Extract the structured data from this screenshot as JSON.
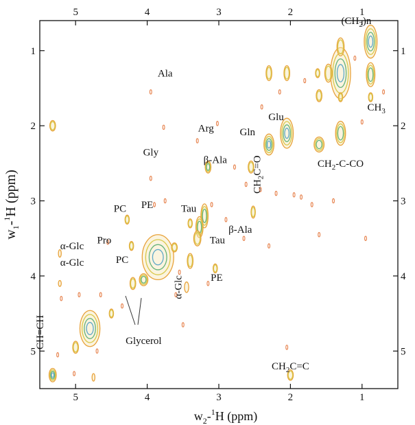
{
  "chart_data": {
    "type": "scatter",
    "subtype": "2D NMR contour spectrum (diagonal + cross peaks)",
    "xlabel": {
      "pre": "w",
      "sub": "2",
      "post": "-",
      "sup": "1",
      "tail": "H  (ppm)"
    },
    "ylabel": {
      "pre": "w",
      "sub": "1",
      "post": "-",
      "sup": "1",
      "tail": "H  (ppm)"
    },
    "xlim": [
      5.5,
      0.5
    ],
    "ylim": [
      0.6,
      5.5
    ],
    "xticks": [
      5,
      4,
      3,
      2,
      1
    ],
    "yticks": [
      1,
      2,
      3,
      4,
      5
    ],
    "colors": {
      "outer": "#e8a23a",
      "mid": "#d9c84a",
      "inner": "#66b37a",
      "core": "#5fa8c8",
      "cross": "#e6804a"
    },
    "peaks": [
      {
        "x": 0.88,
        "y": 0.88,
        "w": 0.09,
        "h": 0.22,
        "level": 4
      },
      {
        "x": 0.88,
        "y": 1.32,
        "w": 0.06,
        "h": 0.16,
        "level": 3
      },
      {
        "x": 1.3,
        "y": 1.3,
        "w": 0.14,
        "h": 0.34,
        "level": 4
      },
      {
        "x": 1.3,
        "y": 0.95,
        "w": 0.05,
        "h": 0.12,
        "level": 2
      },
      {
        "x": 1.47,
        "y": 1.3,
        "w": 0.05,
        "h": 0.12,
        "level": 2
      },
      {
        "x": 1.6,
        "y": 1.6,
        "w": 0.04,
        "h": 0.08,
        "level": 2
      },
      {
        "x": 1.6,
        "y": 2.25,
        "w": 0.07,
        "h": 0.1,
        "level": 3
      },
      {
        "x": 1.3,
        "y": 2.1,
        "w": 0.07,
        "h": 0.16,
        "level": 3
      },
      {
        "x": 2.05,
        "y": 2.1,
        "w": 0.09,
        "h": 0.2,
        "level": 4
      },
      {
        "x": 2.3,
        "y": 2.25,
        "w": 0.07,
        "h": 0.14,
        "level": 4
      },
      {
        "x": 2.05,
        "y": 1.3,
        "w": 0.04,
        "h": 0.1,
        "level": 2
      },
      {
        "x": 2.3,
        "y": 1.3,
        "w": 0.04,
        "h": 0.1,
        "level": 2
      },
      {
        "x": 2.55,
        "y": 2.55,
        "w": 0.04,
        "h": 0.08,
        "level": 2
      },
      {
        "x": 2.52,
        "y": 3.15,
        "w": 0.03,
        "h": 0.08,
        "level": 2
      },
      {
        "x": 3.2,
        "y": 3.2,
        "w": 0.05,
        "h": 0.16,
        "level": 3
      },
      {
        "x": 3.27,
        "y": 3.35,
        "w": 0.05,
        "h": 0.14,
        "level": 3
      },
      {
        "x": 3.15,
        "y": 2.55,
        "w": 0.04,
        "h": 0.08,
        "level": 3
      },
      {
        "x": 3.3,
        "y": 3.5,
        "w": 0.05,
        "h": 0.1,
        "level": 2
      },
      {
        "x": 3.4,
        "y": 3.8,
        "w": 0.04,
        "h": 0.1,
        "level": 2
      },
      {
        "x": 3.45,
        "y": 4.15,
        "w": 0.03,
        "h": 0.07,
        "level": 1
      },
      {
        "x": 3.85,
        "y": 3.75,
        "w": 0.22,
        "h": 0.3,
        "level": 4
      },
      {
        "x": 4.05,
        "y": 4.05,
        "w": 0.06,
        "h": 0.08,
        "level": 3
      },
      {
        "x": 4.2,
        "y": 4.1,
        "w": 0.04,
        "h": 0.08,
        "level": 2
      },
      {
        "x": 4.22,
        "y": 3.6,
        "w": 0.03,
        "h": 0.06,
        "level": 2
      },
      {
        "x": 4.28,
        "y": 3.25,
        "w": 0.03,
        "h": 0.06,
        "level": 2
      },
      {
        "x": 3.62,
        "y": 3.62,
        "w": 0.04,
        "h": 0.06,
        "level": 2
      },
      {
        "x": 4.8,
        "y": 4.7,
        "w": 0.14,
        "h": 0.24,
        "level": 4
      },
      {
        "x": 5.0,
        "y": 4.95,
        "w": 0.04,
        "h": 0.08,
        "level": 2
      },
      {
        "x": 4.5,
        "y": 4.5,
        "w": 0.03,
        "h": 0.06,
        "level": 2
      },
      {
        "x": 5.32,
        "y": 5.32,
        "w": 0.05,
        "h": 0.09,
        "level": 4
      },
      {
        "x": 5.32,
        "y": 2.0,
        "w": 0.04,
        "h": 0.07,
        "level": 2
      },
      {
        "x": 2.0,
        "y": 5.32,
        "w": 0.04,
        "h": 0.07,
        "level": 2
      },
      {
        "x": 5.22,
        "y": 3.7,
        "w": 0.02,
        "h": 0.05,
        "level": 1
      },
      {
        "x": 5.22,
        "y": 4.1,
        "w": 0.02,
        "h": 0.04,
        "level": 1
      },
      {
        "x": 3.4,
        "y": 3.3,
        "w": 0.03,
        "h": 0.06,
        "level": 2
      },
      {
        "x": 3.05,
        "y": 3.9,
        "w": 0.03,
        "h": 0.06,
        "level": 2
      },
      {
        "x": 1.3,
        "y": 1.62,
        "w": 0.03,
        "h": 0.06,
        "level": 2
      },
      {
        "x": 0.88,
        "y": 1.62,
        "w": 0.03,
        "h": 0.06,
        "level": 2
      },
      {
        "x": 4.75,
        "y": 5.35,
        "w": 0.02,
        "h": 0.05,
        "level": 1
      },
      {
        "x": 1.62,
        "y": 1.3,
        "w": 0.03,
        "h": 0.06,
        "level": 2
      }
    ],
    "speckles": [
      [
        3.95,
        1.55
      ],
      [
        3.77,
        2.02
      ],
      [
        3.3,
        2.2
      ],
      [
        3.02,
        1.97
      ],
      [
        2.78,
        2.55
      ],
      [
        2.62,
        2.78
      ],
      [
        2.42,
        2.85
      ],
      [
        2.2,
        2.9
      ],
      [
        1.95,
        2.92
      ],
      [
        1.7,
        3.05
      ],
      [
        1.6,
        3.45
      ],
      [
        1.85,
        2.95
      ],
      [
        2.65,
        3.5
      ],
      [
        3.95,
        2.7
      ],
      [
        3.1,
        3.05
      ],
      [
        2.9,
        3.25
      ],
      [
        4.95,
        4.25
      ],
      [
        4.55,
        3.55
      ],
      [
        4.35,
        4.4
      ],
      [
        3.6,
        4.25
      ],
      [
        3.75,
        3.0
      ],
      [
        3.55,
        3.95
      ],
      [
        3.9,
        3.05
      ],
      [
        1.4,
        3.0
      ],
      [
        0.95,
        3.5
      ],
      [
        2.4,
        1.75
      ],
      [
        2.15,
        1.55
      ],
      [
        1.8,
        1.4
      ],
      [
        1.1,
        1.1
      ],
      [
        5.25,
        5.05
      ],
      [
        5.02,
        5.3
      ],
      [
        4.7,
        5.0
      ],
      [
        2.3,
        3.6
      ],
      [
        3.15,
        4.1
      ],
      [
        2.05,
        4.95
      ],
      [
        5.2,
        4.3
      ],
      [
        4.65,
        4.25
      ],
      [
        3.5,
        4.65
      ],
      [
        0.7,
        1.55
      ],
      [
        1.0,
        1.95
      ]
    ],
    "annotations": [
      {
        "text": "Ala",
        "x": 3.75,
        "y": 1.3
      },
      {
        "text": "Arg",
        "x": 3.18,
        "y": 2.03
      },
      {
        "text": "Gly",
        "x": 3.95,
        "y": 2.35
      },
      {
        "text": "β-Ala",
        "x": 3.05,
        "y": 2.45
      },
      {
        "text": "Gln",
        "x": 2.6,
        "y": 2.08
      },
      {
        "text": "Glu",
        "x": 2.2,
        "y": 1.88
      },
      {
        "text": "(CH2)n",
        "x": 1.08,
        "y": 0.6
      },
      {
        "text": "CH3",
        "x": 0.8,
        "y": 1.75
      },
      {
        "text": "CH2-C-CO",
        "x": 1.3,
        "y": 2.5
      },
      {
        "text": "PC",
        "x": 4.38,
        "y": 3.1
      },
      {
        "text": "PE",
        "x": 4.0,
        "y": 3.05
      },
      {
        "text": "Tau",
        "x": 3.42,
        "y": 3.1
      },
      {
        "text": "Pro",
        "x": 4.6,
        "y": 3.52
      },
      {
        "text": "α-Glc",
        "x": 5.05,
        "y": 3.6
      },
      {
        "text": "α-Glc",
        "x": 5.05,
        "y": 3.82
      },
      {
        "text": "PC",
        "x": 4.35,
        "y": 3.78
      },
      {
        "text": "Tau",
        "x": 3.02,
        "y": 3.52
      },
      {
        "text": "β-Ala",
        "x": 2.7,
        "y": 3.38
      },
      {
        "text": "PE",
        "x": 3.03,
        "y": 4.02
      },
      {
        "text": "Glycerol",
        "x": 4.05,
        "y": 4.86
      },
      {
        "text": "CH2C=C",
        "x": 2.0,
        "y": 5.2
      }
    ],
    "rotated_annotations": [
      {
        "text": "CH2C=O",
        "x": 2.42,
        "y": 2.65
      },
      {
        "text": "α-Glc",
        "x": 3.52,
        "y": 4.15
      },
      {
        "text": "CH=CH",
        "x": 5.45,
        "y": 4.75
      }
    ]
  }
}
